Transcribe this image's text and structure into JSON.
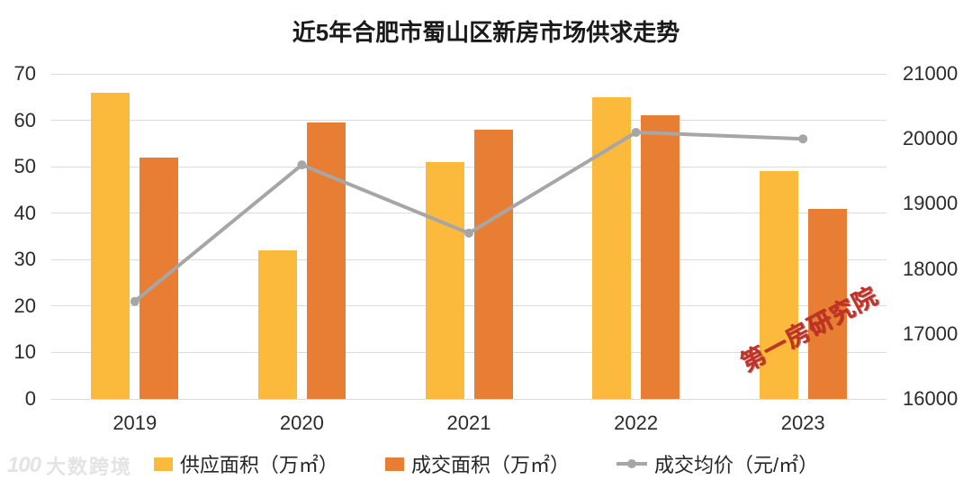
{
  "chart_data": {
    "type": "bar+line",
    "title": "近5年合肥市蜀山区新房市场供求走势",
    "categories": [
      "2019",
      "2020",
      "2021",
      "2022",
      "2023"
    ],
    "series": [
      {
        "name": "供应面积（万㎡）",
        "type": "bar",
        "axis": "left",
        "color": "#FBBA3C",
        "values": [
          66,
          32,
          51,
          65,
          49
        ]
      },
      {
        "name": "成交面积（万㎡）",
        "type": "bar",
        "axis": "left",
        "color": "#E87E33",
        "values": [
          52,
          59.5,
          58,
          61,
          41
        ]
      },
      {
        "name": "成交均价（元/㎡）",
        "type": "line",
        "axis": "right",
        "color": "#A6A6A6",
        "values": [
          17500,
          19600,
          18550,
          20100,
          20000
        ]
      }
    ],
    "left_axis": {
      "min": 0,
      "max": 70,
      "step": 10,
      "ticks": [
        0,
        10,
        20,
        30,
        40,
        50,
        60,
        70
      ]
    },
    "right_axis": {
      "min": 16000,
      "max": 21000,
      "step": 1000,
      "ticks": [
        16000,
        17000,
        18000,
        19000,
        20000,
        21000
      ]
    },
    "grid": true,
    "legend_position": "bottom"
  },
  "colors": {
    "supply_bar": "#FBBA3C",
    "transaction_bar": "#E87E33",
    "price_line": "#A6A6A6",
    "gridline": "#DCDCDC",
    "red_watermark": "#C23128"
  },
  "watermarks": {
    "red": "第一房研究院",
    "logo": "100",
    "brand": "大数跨境"
  }
}
